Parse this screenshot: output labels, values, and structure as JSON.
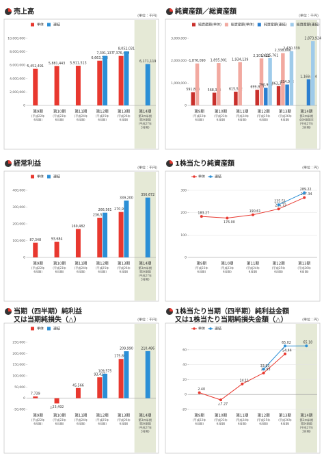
{
  "chart_data": [
    {
      "type": "bar",
      "title": [
        "売上高"
      ],
      "unit": "(単位：千円)",
      "categories": [
        "第9期",
        "第10期",
        "第11期",
        "第12期",
        "第13期",
        "第14期"
      ],
      "category_notes": [
        [
          "(平成22年",
          "6月期)"
        ],
        [
          "(平成23年",
          "6月期)"
        ],
        [
          "(平成24年",
          "6月期)"
        ],
        [
          "(平成25年",
          "6月期)"
        ],
        [
          "(平成26年",
          "6月期)"
        ],
        [
          "第3四半期",
          "累計期間",
          "(平成27年",
          "3月期)"
        ]
      ],
      "highlight_last": true,
      "series": [
        {
          "name": "単体",
          "color": "#e8382f",
          "values": [
            5452491,
            5881443,
            5911513,
            6663133,
            7376430,
            null
          ],
          "value_labels": [
            "5,452,491",
            "5,881,443",
            "5,911,513",
            "6,663,133",
            "7,376,430",
            null
          ]
        },
        {
          "name": "連結",
          "color": "#2b8fd6",
          "values": [
            null,
            null,
            null,
            7391137,
            8052031,
            6171119
          ],
          "value_labels": [
            null,
            null,
            null,
            "7,391,137",
            "8,052,031",
            "6,171,119"
          ]
        }
      ],
      "ylim": [
        0,
        10000000
      ],
      "yticks": [
        0,
        {
          "value": 2000000,
          "label": "2,000,000"
        },
        {
          "value": 4000000,
          "label": "4,000,000"
        },
        {
          "value": 6000000,
          "label": "6,000,000"
        },
        {
          "value": 8000000,
          "label": "8,000,000"
        },
        {
          "value": 10000000,
          "label": "10,000,000"
        }
      ]
    },
    {
      "type": "bar",
      "title": [
        "純資産額／総資産額"
      ],
      "unit": "(単位：千円)",
      "categories": [
        "第9期",
        "第10期",
        "第11期",
        "第12期",
        "第13期",
        "第14期"
      ],
      "category_notes": [
        [
          "(平成22年",
          "6月期)"
        ],
        [
          "(平成23年",
          "6月期)"
        ],
        [
          "(平成24年",
          "6月期)"
        ],
        [
          "(平成25年",
          "6月期)"
        ],
        [
          "(平成26年",
          "6月期)"
        ],
        [
          "第3四半期",
          "会計期間末",
          "(平成27年",
          "3月期)"
        ]
      ],
      "highlight_last": true,
      "series": [
        {
          "name": "純資産額(単体)",
          "color": "#c9302c",
          "values": [
            591858,
            568394,
            615552,
            699909,
            863367,
            null
          ],
          "value_labels": [
            "591,858",
            "568,394",
            "615,552",
            "699,909",
            "863,367",
            null
          ]
        },
        {
          "name": "総資産額(単体)",
          "color": "#f2a9a0",
          "values": [
            1876090,
            1895901,
            1934139,
            2101422,
            2338806,
            null
          ],
          "value_labels": [
            "1,876,090",
            "1,895,901",
            "1,934,139",
            "2,101,422",
            "2,338,806",
            null
          ]
        },
        {
          "name": "純資産額(連結)",
          "color": "#2b7fd0",
          "values": [
            null,
            null,
            null,
            790964,
            934022,
            1169054
          ],
          "value_labels": [
            null,
            null,
            null,
            "790,964",
            "934,022",
            "1,169,054"
          ]
        },
        {
          "name": "総資産額(連結)",
          "color": "#9fcbea",
          "values": [
            null,
            null,
            null,
            2115761,
            2430339,
            2873924
          ],
          "value_labels": [
            null,
            null,
            null,
            "2,115,761",
            "2,430,339",
            "2,873,924"
          ]
        }
      ],
      "ylim": [
        0,
        3000000
      ],
      "yticks": [
        0,
        {
          "value": 1000000,
          "label": "1,000,000"
        },
        {
          "value": 2000000,
          "label": "2,000,000"
        },
        {
          "value": 3000000,
          "label": "3,000,000"
        }
      ]
    },
    {
      "type": "bar",
      "title": [
        "経常利益"
      ],
      "unit": "(単位：千円)",
      "categories": [
        "第9期",
        "第10期",
        "第11期",
        "第12期",
        "第13期",
        "第14期"
      ],
      "category_notes": [
        [
          "(平成22年",
          "6月期)"
        ],
        [
          "(平成23年",
          "6月期)"
        ],
        [
          "(平成24年",
          "6月期)"
        ],
        [
          "(平成25年",
          "6月期)"
        ],
        [
          "(平成26年",
          "6月期)"
        ],
        [
          "第3四半期",
          "累計期間",
          "(平成27年",
          "3月期)"
        ]
      ],
      "highlight_last": true,
      "series": [
        {
          "name": "単体",
          "color": "#e8382f",
          "values": [
            87348,
            93684,
            169482,
            236557,
            270958,
            null
          ],
          "value_labels": [
            "87,348",
            "93,684",
            "169,482",
            "236,557",
            "270,958",
            null
          ]
        },
        {
          "name": "連結",
          "color": "#2b8fd6",
          "values": [
            null,
            null,
            null,
            266561,
            339200,
            356672
          ],
          "value_labels": [
            null,
            null,
            null,
            "266,561",
            "339,200",
            "356,672"
          ]
        }
      ],
      "ylim": [
        0,
        400000
      ],
      "yticks": [
        0,
        {
          "value": 100000,
          "label": "100,000"
        },
        {
          "value": 200000,
          "label": "200,000"
        },
        {
          "value": 300000,
          "label": "300,000"
        },
        {
          "value": 400000,
          "label": "400,000"
        }
      ]
    },
    {
      "type": "line",
      "title": [
        "1株当たり純資産額"
      ],
      "unit": "(単位：円)",
      "categories": [
        "第9期",
        "第10期",
        "第11期",
        "第12期",
        "第13期"
      ],
      "category_notes": [
        [
          "(平成22年",
          "6月期)"
        ],
        [
          "(平成23年",
          "6月期)"
        ],
        [
          "(平成24年",
          "6月期)"
        ],
        [
          "(平成25年",
          "6月期)"
        ],
        [
          "(平成26年",
          "6月期)"
        ]
      ],
      "highlight_last": false,
      "series": [
        {
          "name": "単体",
          "color": "#e8382f",
          "values": [
            183.27,
            176.0,
            190.61,
            216.73,
            267.34
          ],
          "value_labels": [
            "183.27",
            "176.00",
            "190.61",
            "216.73",
            "267.34"
          ]
        },
        {
          "name": "連結",
          "color": "#2b8fd6",
          "values": [
            null,
            null,
            null,
            235.51,
            289.22
          ],
          "value_labels": [
            null,
            null,
            null,
            "235.51",
            "289.22"
          ]
        }
      ],
      "ylim": [
        0,
        300
      ],
      "yticks": [
        0,
        100,
        200,
        300
      ]
    },
    {
      "type": "bar",
      "title": [
        "当期（四半期）純利益",
        "又は当期純損失（△）"
      ],
      "unit": "(単位：千円)",
      "categories": [
        "第9期",
        "第10期",
        "第11期",
        "第12期",
        "第13期",
        "第14期"
      ],
      "category_notes": [
        [
          "(平成22年",
          "6月期)"
        ],
        [
          "(平成23年",
          "6月期)"
        ],
        [
          "(平成24年",
          "6月期)"
        ],
        [
          "(平成25年",
          "6月期)"
        ],
        [
          "(平成26年",
          "6月期)"
        ],
        [
          "第3四半期",
          "累計期間",
          "(平成27年",
          "3月期)"
        ]
      ],
      "highlight_last": true,
      "series": [
        {
          "name": "単体",
          "color": "#e8382f",
          "values": [
            7739,
            -23492,
            45566,
            93427,
            175801,
            null
          ],
          "value_labels": [
            "7,739",
            "△23,492",
            "45,566",
            "93,427",
            "175,801",
            null
          ]
        },
        {
          "name": "連結",
          "color": "#2b8fd6",
          "values": [
            null,
            null,
            null,
            109575,
            209990,
            210486
          ],
          "value_labels": [
            null,
            null,
            null,
            "109,575",
            "209,990",
            "210,486"
          ]
        }
      ],
      "ylim": [
        -50000,
        250000
      ],
      "yticks": [
        {
          "value": -50000,
          "label": "-50,000"
        },
        0,
        {
          "value": 50000,
          "label": "50,000"
        },
        {
          "value": 100000,
          "label": "100,000"
        },
        {
          "value": 150000,
          "label": "150,000"
        },
        {
          "value": 200000,
          "label": "200,000"
        },
        {
          "value": 250000,
          "label": "250,000"
        }
      ]
    },
    {
      "type": "line",
      "title": [
        "1株当たり当期（四半期）純利益金額",
        "又は1株当たり当期純損失金額（△）"
      ],
      "unit": "(単位：円)",
      "categories": [
        "第9期",
        "第10期",
        "第11期",
        "第12期",
        "第13期",
        "第14期"
      ],
      "category_notes": [
        [
          "(平成22年",
          "6月期)"
        ],
        [
          "(平成23年",
          "6月期)"
        ],
        [
          "(平成24年",
          "6月期)"
        ],
        [
          "(平成25年",
          "6月期)"
        ],
        [
          "(平成26年",
          "6月期)"
        ],
        [
          "第3四半期",
          "累計期間",
          "(平成27年",
          "3月期)"
        ]
      ],
      "highlight_last": true,
      "series": [
        {
          "name": "単体",
          "color": "#e8382f",
          "values": [
            2.4,
            -7.27,
            14.11,
            28.93,
            54.44,
            null
          ],
          "value_labels": [
            "2.40",
            "△7.27",
            "14.11",
            "28.93",
            "54.44",
            null
          ]
        },
        {
          "name": "連結",
          "color": "#2b8fd6",
          "values": [
            null,
            null,
            null,
            33.93,
            65.02,
            65.18
          ],
          "value_labels": [
            null,
            null,
            null,
            "33.93",
            "65.02",
            "65.18"
          ]
        }
      ],
      "ylim": [
        -20,
        70
      ],
      "yticks": [
        -20,
        0,
        20,
        40,
        60
      ]
    }
  ]
}
